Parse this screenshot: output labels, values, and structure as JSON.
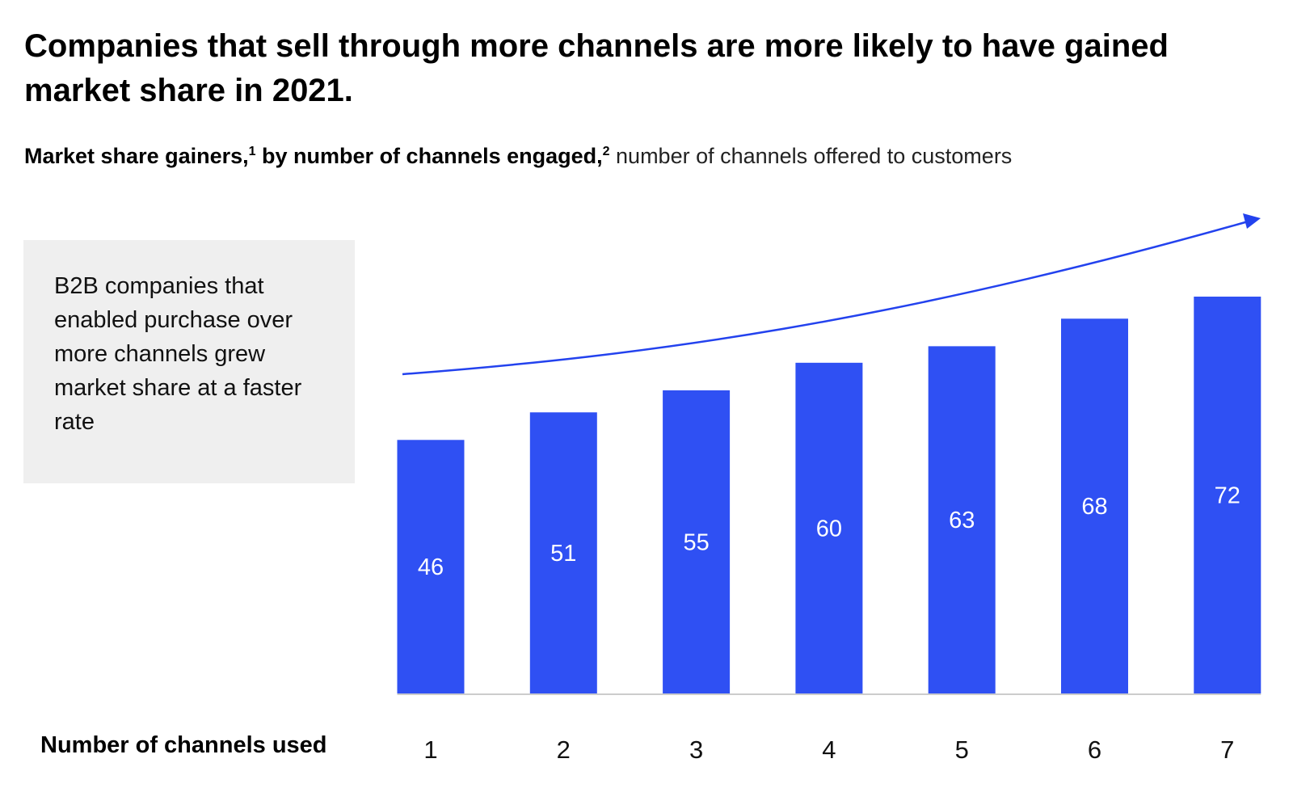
{
  "title": "Companies that sell through more channels are more likely to have gained market share in 2021.",
  "subtitle": {
    "bold_part1": "Market share gainers,",
    "footnote1": "1",
    "bold_part2": " by number of channels engaged,",
    "footnote2": "2",
    "light_part": " number of channels offered to customers"
  },
  "callout": "B2B companies that enabled purchase over more channels grew market share at a faster rate",
  "colors": {
    "bar": "#2f50f3",
    "arrow": "#2342ee",
    "callout_bg": "#efefef",
    "axis": "#cccccc"
  },
  "chart_data": {
    "type": "bar",
    "xlabel": "Number of channels used",
    "categories": [
      "1",
      "2",
      "3",
      "4",
      "5",
      "6",
      "7"
    ],
    "values": [
      46,
      51,
      55,
      60,
      63,
      68,
      72
    ],
    "data_labels": [
      "46",
      "51",
      "55",
      "60",
      "63",
      "68",
      "72"
    ],
    "ylim": [
      0,
      72
    ],
    "grid": false,
    "y_axis_shown": false,
    "trend_arrow": "upward curved arrow above bars"
  }
}
